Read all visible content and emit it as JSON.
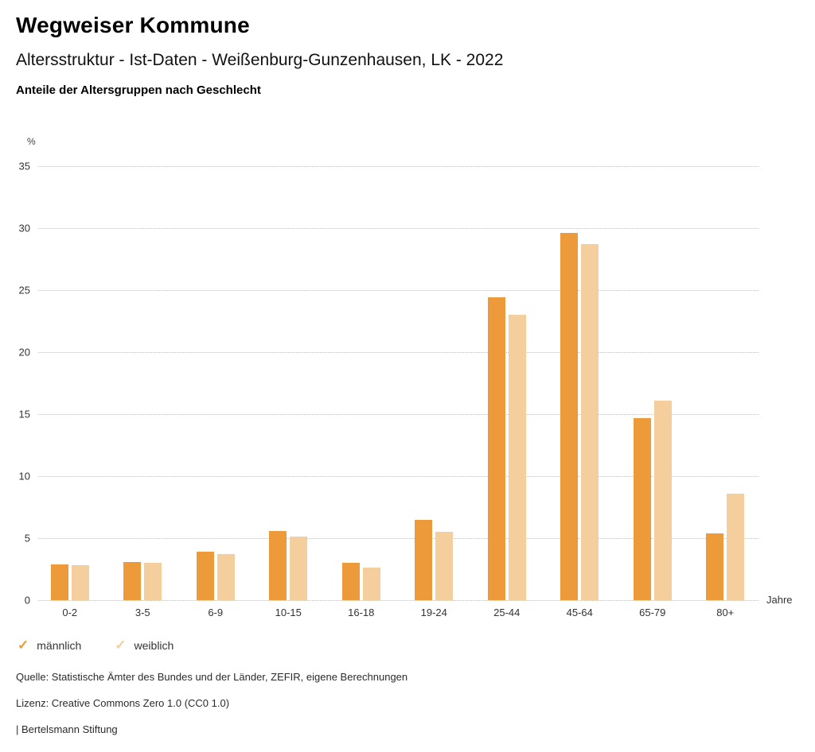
{
  "header": {
    "title": "Wegweiser Kommune",
    "subtitle": "Altersstruktur - Ist-Daten - Weißenburg-Gunzenhausen, LK - 2022",
    "caption": "Anteile der Altersgruppen nach Geschlecht"
  },
  "chart_data": {
    "type": "bar",
    "title": "Anteile der Altersgruppen nach Geschlecht",
    "categories": [
      "0-2",
      "3-5",
      "6-9",
      "10-15",
      "16-18",
      "19-24",
      "25-44",
      "45-64",
      "65-79",
      "80+"
    ],
    "series": [
      {
        "name": "männlich",
        "color": "#ED9A3B",
        "values": [
          2.9,
          3.1,
          3.9,
          5.6,
          3.0,
          6.5,
          24.4,
          29.6,
          14.7,
          5.4
        ]
      },
      {
        "name": "weiblich",
        "color": "#F5CE9E",
        "values": [
          2.8,
          3.0,
          3.7,
          5.1,
          2.6,
          5.5,
          23.0,
          28.7,
          16.1,
          8.6
        ]
      }
    ],
    "ylabel": "%",
    "xlabel": "Jahre",
    "ylim": [
      0,
      35
    ],
    "ytick_step": 5,
    "grid": "horizontal-dotted",
    "legend_position": "bottom-left"
  },
  "legend": {
    "items": [
      {
        "label": "männlich",
        "color": "#ED9A3B",
        "marker": "check"
      },
      {
        "label": "weiblich",
        "color": "#F5CE9E",
        "marker": "check"
      }
    ]
  },
  "footer": {
    "source": "Quelle: Statistische Ämter des Bundes und der Länder, ZEFIR, eigene Berechnungen",
    "license": "Lizenz: Creative Commons Zero 1.0 (CC0 1.0)",
    "attribution": "| Bertelsmann Stiftung"
  }
}
